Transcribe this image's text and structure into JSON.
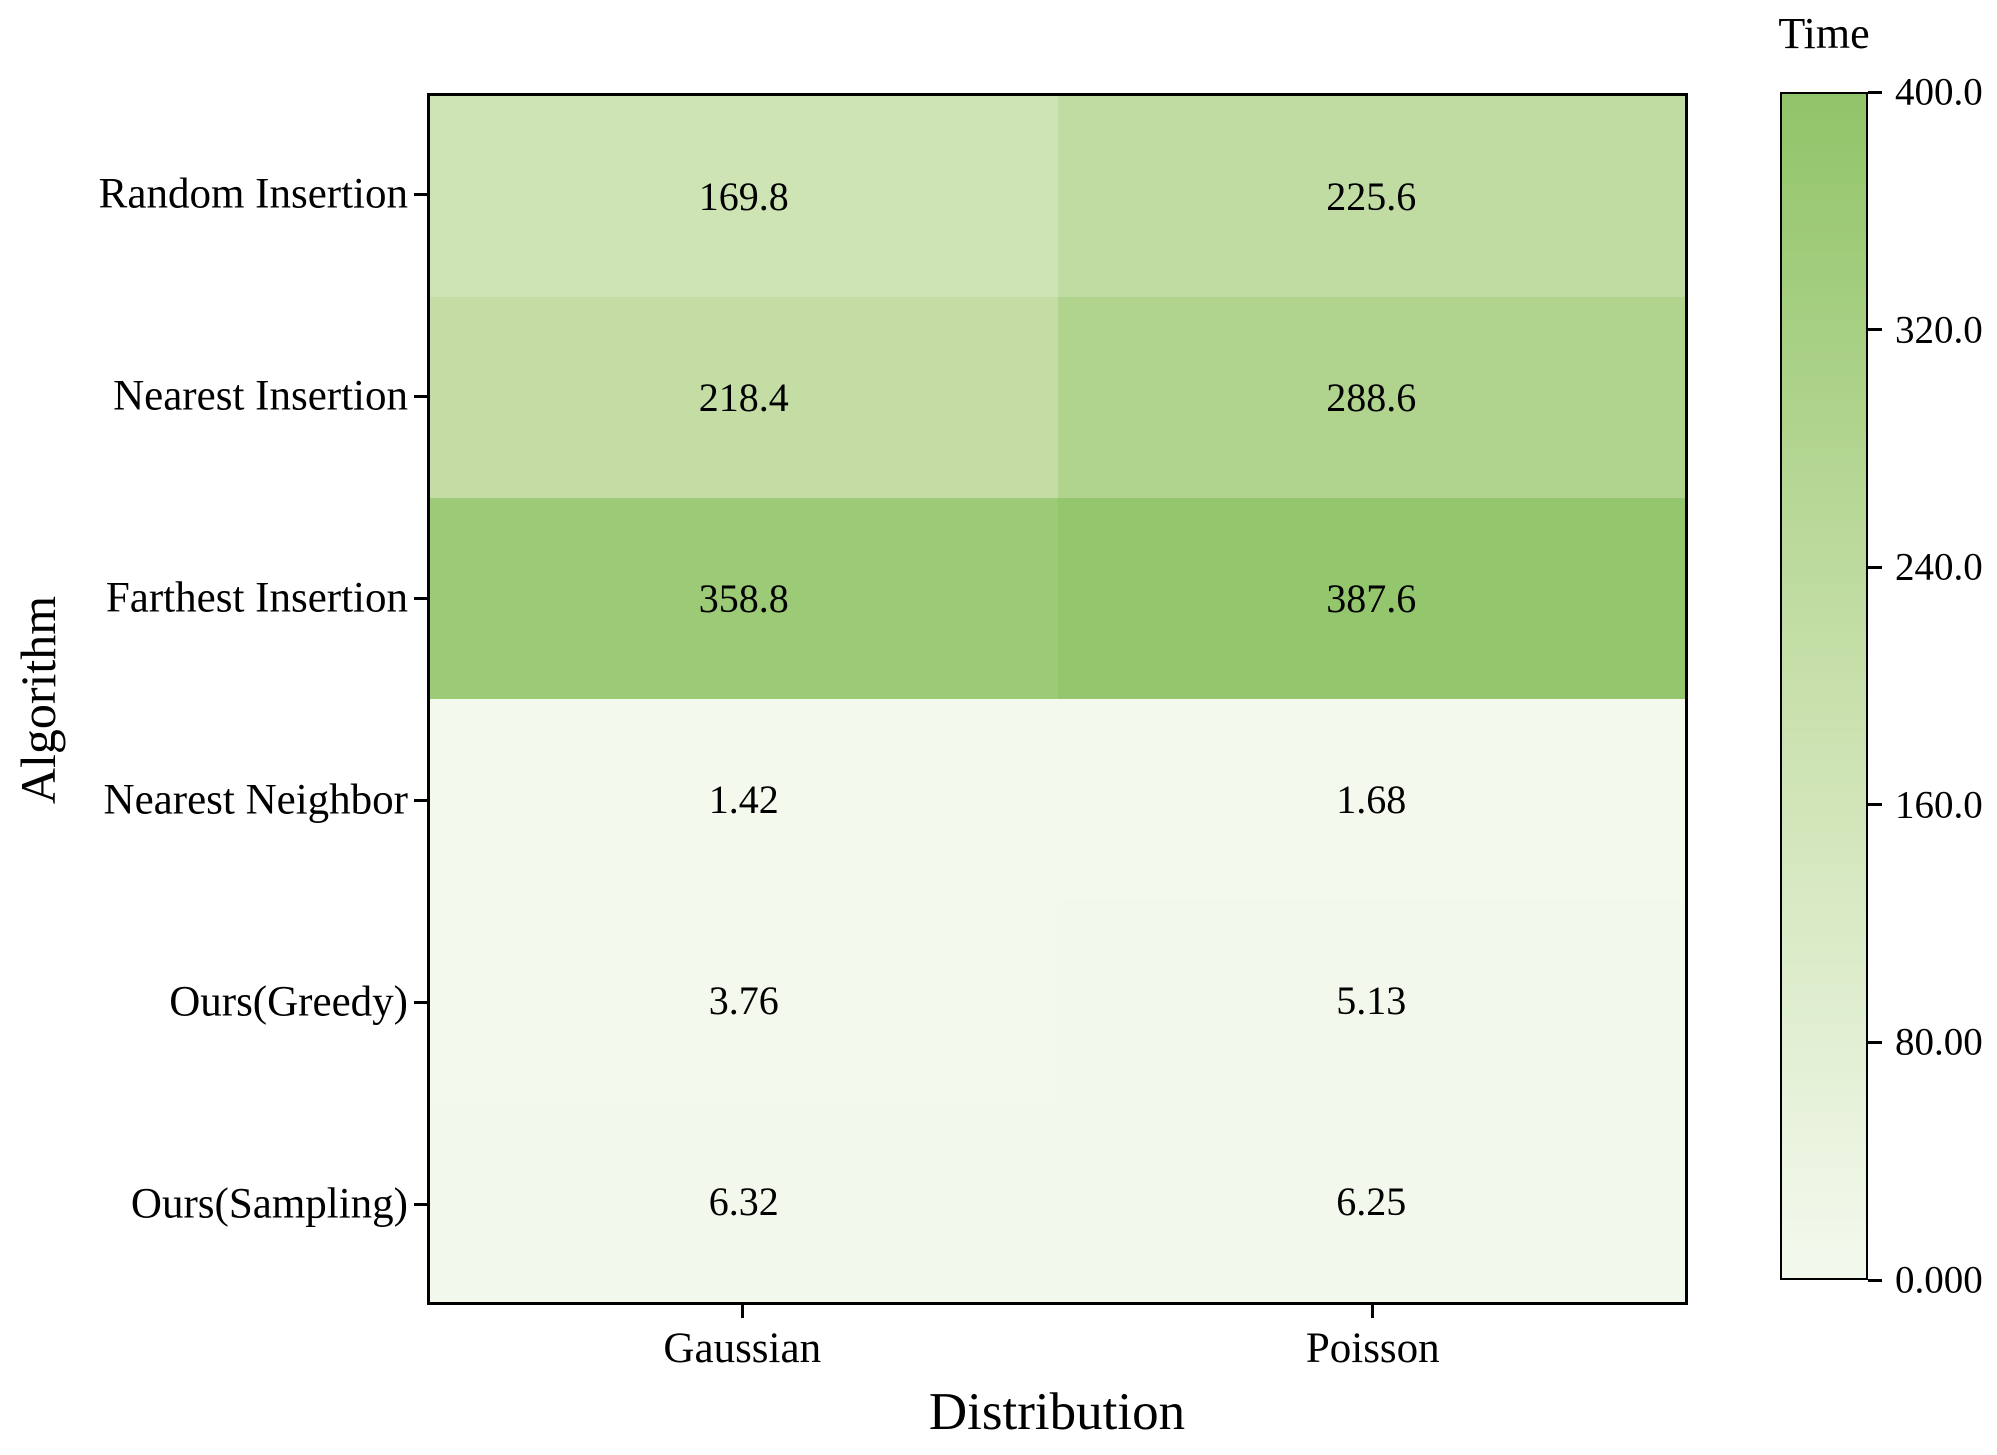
{
  "chart_data": {
    "type": "heatmap",
    "xlabel": "Distribution",
    "ylabel": "Algorithm",
    "categories_x": [
      "Gaussian",
      "Poisson"
    ],
    "categories_y": [
      "Random Insertion",
      "Nearest Insertion",
      "Farthest Insertion",
      "Nearest Neighbor",
      "Ours(Greedy)",
      "Ours(Sampling)"
    ],
    "values": [
      [
        169.8,
        225.6
      ],
      [
        218.4,
        288.6
      ],
      [
        358.8,
        387.6
      ],
      [
        1.42,
        1.68
      ],
      [
        3.76,
        5.13
      ],
      [
        6.32,
        6.25
      ]
    ],
    "cell_labels": [
      [
        "169.8",
        "225.6"
      ],
      [
        "218.4",
        "288.6"
      ],
      [
        "358.8",
        "387.6"
      ],
      [
        "1.42",
        "1.68"
      ],
      [
        "3.76",
        "5.13"
      ],
      [
        "6.32",
        "6.25"
      ]
    ],
    "colorbar": {
      "title": "Time",
      "vmin": 0,
      "vmax": 400,
      "tick_values": [
        400,
        320,
        240,
        160,
        80,
        0
      ],
      "tick_labels": [
        "400.0",
        "320.0",
        "240.0",
        "160.0",
        "80.00",
        "0.000"
      ]
    },
    "colormap": {
      "stops": [
        {
          "t": 0.0,
          "color": "#f4f9ee"
        },
        {
          "t": 0.5,
          "color": "#c8e0ab"
        },
        {
          "t": 1.0,
          "color": "#91c469"
        }
      ]
    },
    "colors": {
      "text": "#000000",
      "frame": "#000000",
      "background": "#ffffff"
    },
    "layout_hints": {
      "grid": false,
      "legend_position": "right-colorbar",
      "x_tick_count": 2,
      "y_tick_count": 6
    }
  }
}
